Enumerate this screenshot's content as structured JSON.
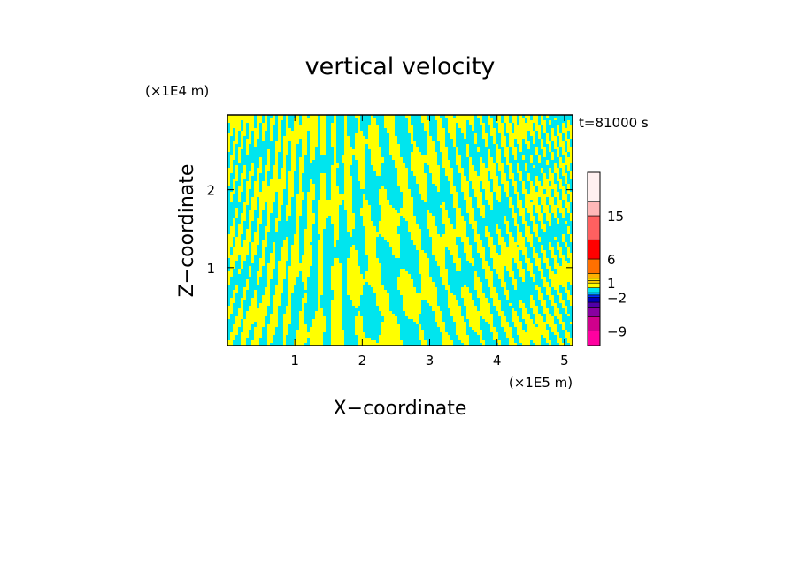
{
  "chart_data": {
    "type": "heatmap",
    "title": "vertical velocity",
    "xlabel": "X−coordinate",
    "ylabel": "Z−coordinate",
    "x_unit": "(×1E5 m)",
    "y_unit": "(×1E4 m)",
    "time_label": "t=81000 s",
    "xlim": [
      0,
      5.12
    ],
    "ylim": [
      0,
      2.96
    ],
    "x_ticks": [
      1,
      2,
      3,
      4,
      5
    ],
    "y_ticks": [
      1,
      2
    ],
    "x_tick_labels": [
      "1",
      "2",
      "3",
      "4",
      "5"
    ],
    "y_tick_labels": [
      "1",
      "2"
    ],
    "field_colors": {
      "positive": "#ffff00",
      "negative": "#00e5ee"
    },
    "colorbar": {
      "range": [
        -12,
        24
      ],
      "levels": [
        {
          "from": -12,
          "to": -9,
          "color": "#ff00a0"
        },
        {
          "from": -9,
          "to": -6,
          "color": "#d0008c"
        },
        {
          "from": -6,
          "to": -4,
          "color": "#8800a0"
        },
        {
          "from": -4,
          "to": -3,
          "color": "#5000a8"
        },
        {
          "from": -3,
          "to": -2,
          "color": "#0000b8"
        },
        {
          "from": -2,
          "to": -1.5,
          "color": "#0030ff"
        },
        {
          "from": -1.5,
          "to": -1,
          "color": "#00a8ff"
        },
        {
          "from": -1,
          "to": 0,
          "color": "#00e5ee"
        },
        {
          "from": 0,
          "to": 1,
          "color": "#ffff00"
        },
        {
          "from": 1,
          "to": 1.5,
          "color": "#ffd000"
        },
        {
          "from": 1.5,
          "to": 2,
          "color": "#ffe000"
        },
        {
          "from": 2,
          "to": 3,
          "color": "#ffb000"
        },
        {
          "from": 3,
          "to": 6,
          "color": "#ff7000"
        },
        {
          "from": 6,
          "to": 10,
          "color": "#ff0000"
        },
        {
          "from": 10,
          "to": 15,
          "color": "#ff6060"
        },
        {
          "from": 15,
          "to": 18,
          "color": "#ffb8b8"
        },
        {
          "from": 18,
          "to": 24,
          "color": "#fff0f0"
        }
      ],
      "tick_labels": [
        {
          "value": 15,
          "label": "15"
        },
        {
          "value": 6,
          "label": "6"
        },
        {
          "value": 1,
          "label": "1"
        },
        {
          "value": -2,
          "label": "−2"
        },
        {
          "value": -9,
          "label": "−9"
        }
      ]
    }
  }
}
